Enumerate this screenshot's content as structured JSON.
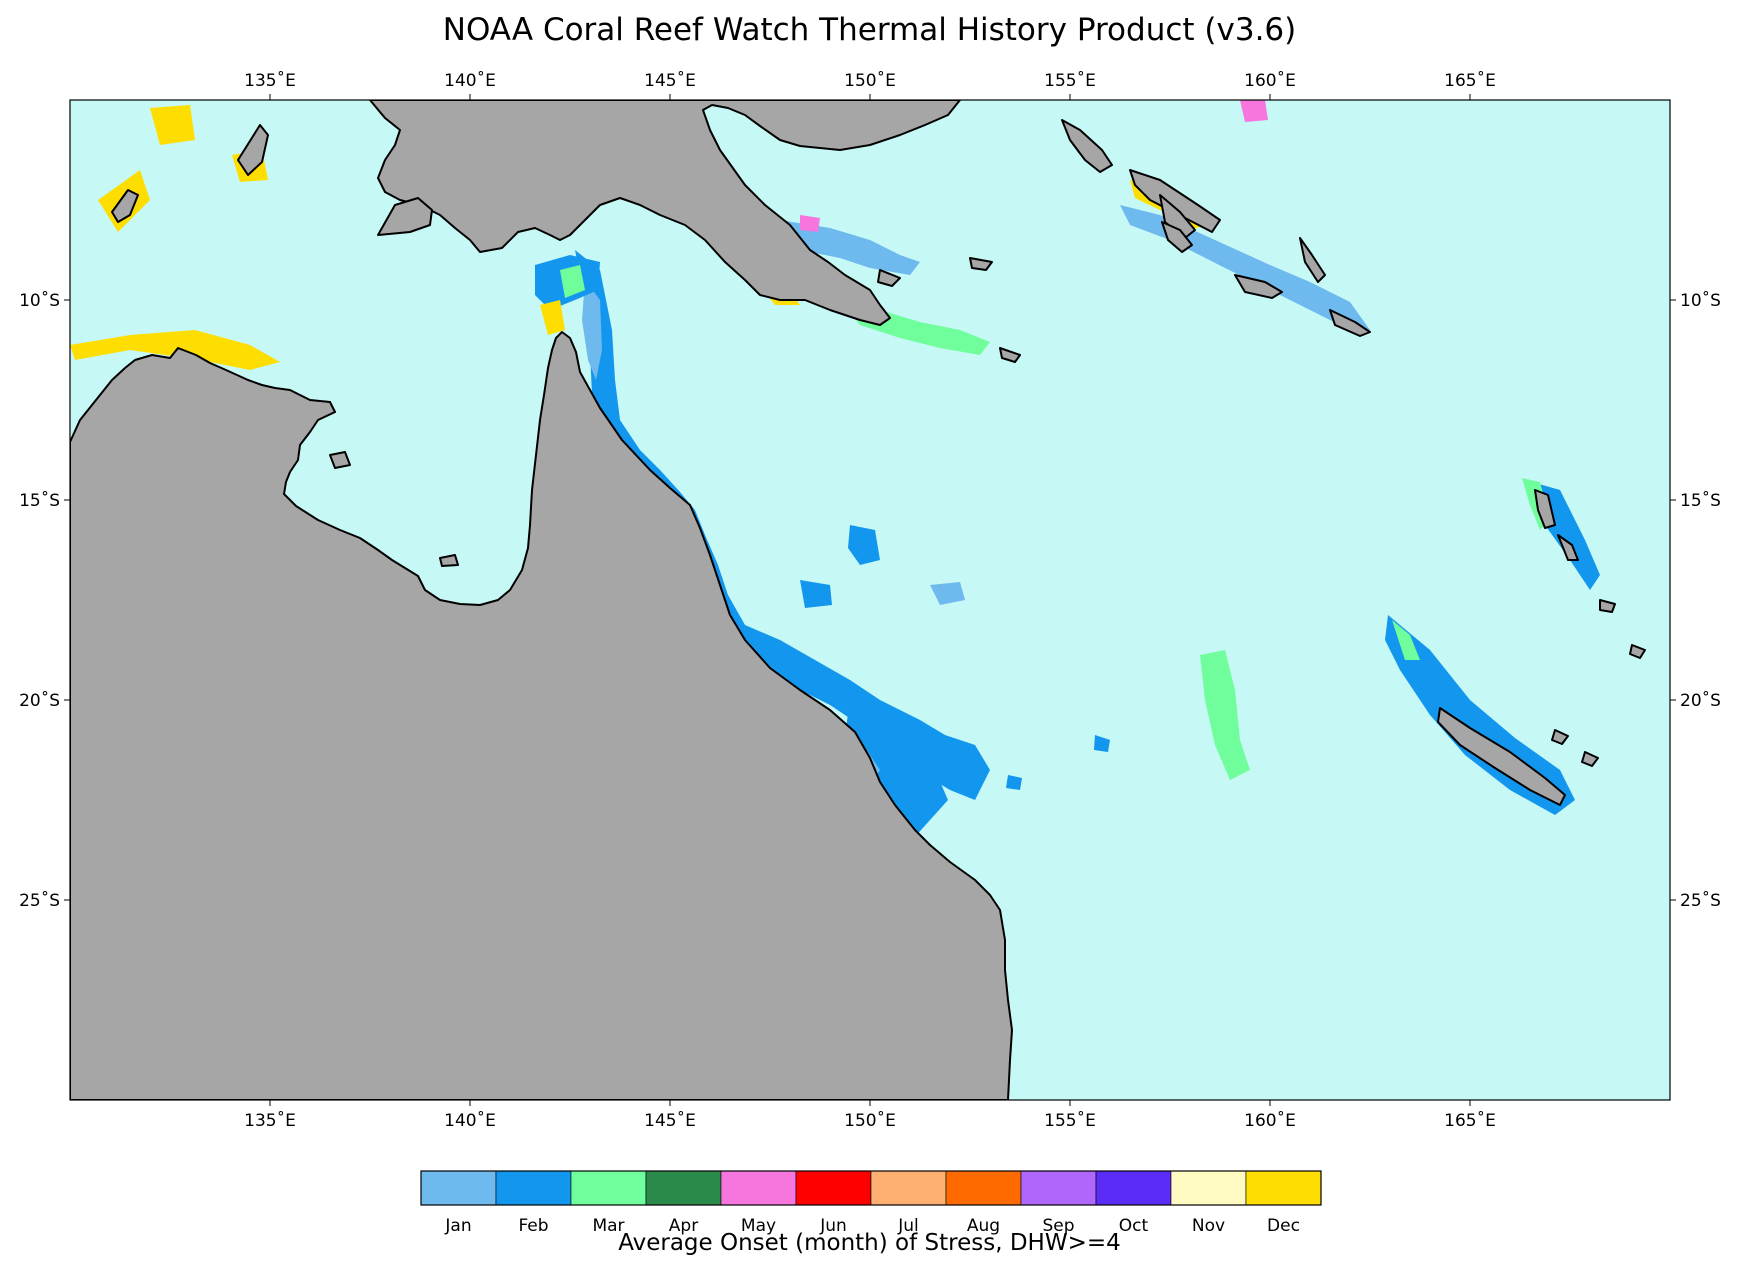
{
  "title": "NOAA Coral Reef Watch Thermal History Product (v3.6)",
  "map": {
    "lon_range": [
      130,
      170
    ],
    "lat_range": [
      -30,
      -5
    ],
    "lon_ticks": [
      {
        "value": 135,
        "label": "135˚E"
      },
      {
        "value": 140,
        "label": "140˚E"
      },
      {
        "value": 145,
        "label": "145˚E"
      },
      {
        "value": 150,
        "label": "150˚E"
      },
      {
        "value": 155,
        "label": "155˚E"
      },
      {
        "value": 160,
        "label": "160˚E"
      },
      {
        "value": 165,
        "label": "165˚E"
      }
    ],
    "lat_ticks": [
      {
        "value": -10,
        "label": "10˚S"
      },
      {
        "value": -15,
        "label": "15˚S"
      },
      {
        "value": -20,
        "label": "20˚S"
      },
      {
        "value": -25,
        "label": "25˚S"
      }
    ],
    "ocean_color": "#c6f8f6",
    "land_color": "#a6a6a6",
    "coast_color": "#000000"
  },
  "colorbar": {
    "label": "Average Onset (month) of Stress, DHW>=4",
    "entries": [
      {
        "label": "Jan",
        "color": "#6eb9ee"
      },
      {
        "label": "Feb",
        "color": "#1296ee"
      },
      {
        "label": "Mar",
        "color": "#70fe9c"
      },
      {
        "label": "Apr",
        "color": "#2a8a49"
      },
      {
        "label": "May",
        "color": "#f776dd"
      },
      {
        "label": "Jun",
        "color": "#fe0000"
      },
      {
        "label": "Jul",
        "color": "#feb073"
      },
      {
        "label": "Aug",
        "color": "#fe6a00"
      },
      {
        "label": "Sep",
        "color": "#b066fa"
      },
      {
        "label": "Oct",
        "color": "#5a2cf5"
      },
      {
        "label": "Nov",
        "color": "#fefac2"
      },
      {
        "label": "Dec",
        "color": "#fede00"
      }
    ]
  }
}
